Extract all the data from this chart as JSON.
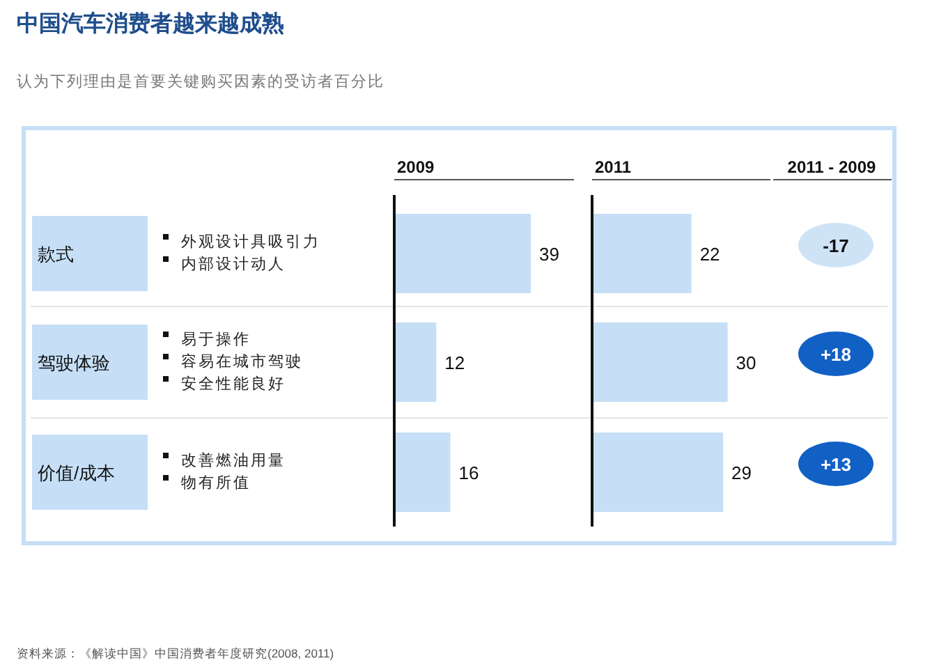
{
  "chart_data": [
    {
      "type": "other",
      "title": "中国汽车消费者越来越成熟",
      "subtitle": "认为下列理由是首要关键购买因素的受访者百分比",
      "annotations": [
        "资料来源：《解读中国》中国消费者年度研究(2008, 2011)"
      ]
    },
    {
      "type": "other",
      "categories": [
        "款式"
      ],
      "annotations": [
        "外观设计具吸引力",
        "内部设计动人"
      ]
    },
    {
      "type": "other",
      "categories": [
        "驾驶体验"
      ],
      "annotations": [
        "易于操作",
        "容易在城市驾驶",
        "安全性能良好"
      ]
    },
    {
      "type": "other",
      "categories": [
        "价值/成本"
      ],
      "annotations": [
        "改善燃油用量",
        "物有所值"
      ]
    },
    {
      "type": "bar",
      "orientation": "horizontal",
      "title": "2009",
      "categories": [
        null,
        null,
        null
      ],
      "values": [
        39,
        12,
        16
      ],
      "color": "#c6dff7",
      "data_labels": true
    },
    {
      "type": "bar",
      "orientation": "horizontal",
      "title": "2011",
      "categories": [
        null,
        null,
        null
      ],
      "values": [
        22,
        30,
        29
      ],
      "color": "#c6dff7",
      "data_labels": true
    },
    {
      "type": "other",
      "title": "2011 - 2009",
      "categories": [
        null,
        null,
        null
      ],
      "values": [
        -17,
        18,
        13
      ],
      "value_labels": [
        "-17",
        "+18",
        "+13"
      ],
      "colors": [
        "#cfe3f7",
        "#1160c4",
        "#1160c4"
      ]
    }
  ]
}
